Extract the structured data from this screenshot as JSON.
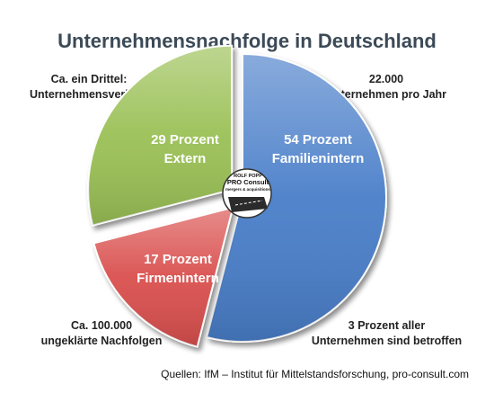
{
  "chart_data": {
    "type": "pie",
    "title": "Unternehmensnachfolge in Deutschland",
    "slices": [
      {
        "value": 54,
        "line1": "54 Prozent",
        "line2": "Familienintern",
        "color": "#4a7ec9",
        "exploded": false
      },
      {
        "value": 17,
        "line1": "17 Prozent",
        "line2": "Firmenintern",
        "color": "#d9504d",
        "exploded": true
      },
      {
        "value": 29,
        "line1": "29 Prozent",
        "line2": "Extern",
        "color": "#9ac054",
        "exploded": true
      }
    ],
    "annotations": {
      "top_left": [
        "Ca. ein Drittel:",
        "Unternehmensverkauf"
      ],
      "top_right": [
        "22.000",
        "Unternehmen pro Jahr"
      ],
      "bottom_left": [
        "Ca. 100.000",
        "ungeklärte Nachfolgen"
      ],
      "bottom_right": [
        "3 Prozent aller",
        "Unternehmen sind betroffen"
      ]
    },
    "sources": "Quellen: IfM – Institut für Mittelstandsforschung,  pro-consult.com"
  },
  "logo": {
    "line1": "ROLF POPP",
    "line2": "PRO Consult",
    "line3": "mergers & acquisitions"
  }
}
